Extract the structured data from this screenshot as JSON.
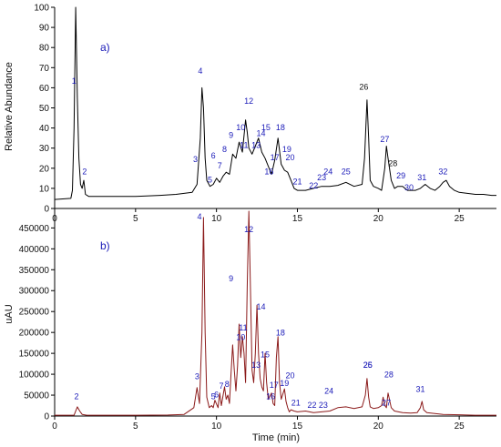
{
  "chart_data": [
    {
      "type": "line",
      "panel_label": "a)",
      "ylabel": "Relative Abundance",
      "xlabel": "",
      "xlim": [
        0,
        27.3
      ],
      "ylim": [
        0,
        100
      ],
      "xticks": [
        0,
        5,
        10,
        15,
        20,
        25
      ],
      "yticks": [
        0,
        10,
        20,
        30,
        40,
        50,
        60,
        70,
        80,
        90,
        100
      ],
      "line_color": "#000000",
      "series": [
        {
          "values_x": [
            0.0,
            1.0,
            1.1,
            1.2,
            1.3,
            1.4,
            1.5,
            1.6,
            1.7,
            1.8,
            1.9,
            2.1,
            2.5,
            3.5,
            5.0,
            6.5,
            7.5,
            8.5,
            8.8,
            9.0,
            9.1,
            9.2,
            9.3,
            9.4,
            9.6,
            9.8,
            10.0,
            10.2,
            10.4,
            10.6,
            10.8,
            11.0,
            11.2,
            11.4,
            11.6,
            11.8,
            11.9,
            12.0,
            12.2,
            12.4,
            12.6,
            12.8,
            13.0,
            13.2,
            13.4,
            13.6,
            13.8,
            14.0,
            14.2,
            14.4,
            14.6,
            14.8,
            15.0,
            15.5,
            16.0,
            16.5,
            17.0,
            17.5,
            18.0,
            18.5,
            19.0,
            19.15,
            19.3,
            19.4,
            19.5,
            19.7,
            20.0,
            20.2,
            20.4,
            20.5,
            20.6,
            20.8,
            21.0,
            21.2,
            21.5,
            21.8,
            22.0,
            22.3,
            22.6,
            22.9,
            23.2,
            23.5,
            23.8,
            24.0,
            24.2,
            24.4,
            24.7,
            25.0,
            25.5,
            26.0,
            26.5,
            27.0,
            27.3
          ],
          "values_y": [
            4.5,
            5,
            9,
            40,
            100,
            55,
            25,
            12,
            10,
            14,
            7,
            6,
            6,
            6,
            6,
            6.5,
            7,
            8,
            12,
            35,
            60,
            50,
            25,
            14,
            11,
            12,
            15,
            13,
            16,
            18,
            17,
            27,
            25,
            33,
            28,
            44,
            38,
            30,
            27,
            31,
            35,
            28,
            25,
            21,
            17,
            24,
            35,
            22,
            19,
            18,
            14,
            10,
            9,
            9,
            10,
            11,
            11,
            11.5,
            13,
            11,
            12,
            25,
            54,
            35,
            14,
            11,
            10,
            9,
            20,
            31,
            25,
            14,
            10,
            11,
            11,
            9,
            9,
            9,
            10,
            12,
            10,
            9,
            11,
            13,
            14,
            11,
            9,
            8,
            7.5,
            7,
            7,
            6.5,
            6.5
          ]
        }
      ],
      "peak_labels": [
        {
          "text": "1",
          "x": 1.2,
          "y": 62,
          "color": "#1a1ab8"
        },
        {
          "text": "2",
          "x": 1.85,
          "y": 17,
          "color": "#1a1ab8"
        },
        {
          "text": "3",
          "x": 8.7,
          "y": 23,
          "color": "#1a1ab8"
        },
        {
          "text": "4",
          "x": 9.0,
          "y": 67,
          "color": "#1a1ab8"
        },
        {
          "text": "5",
          "x": 9.6,
          "y": 13,
          "color": "#1a1ab8"
        },
        {
          "text": "6",
          "x": 9.8,
          "y": 25,
          "color": "#1a1ab8"
        },
        {
          "text": "7",
          "x": 10.2,
          "y": 20,
          "color": "#1a1ab8"
        },
        {
          "text": "8",
          "x": 10.5,
          "y": 28,
          "color": "#1a1ab8"
        },
        {
          "text": "9",
          "x": 10.9,
          "y": 35,
          "color": "#1a1ab8"
        },
        {
          "text": "10",
          "x": 11.5,
          "y": 39,
          "color": "#1a1ab8"
        },
        {
          "text": "11",
          "x": 11.7,
          "y": 30,
          "color": "#1a1ab8"
        },
        {
          "text": "12",
          "x": 12.0,
          "y": 52,
          "color": "#1a1ab8"
        },
        {
          "text": "13",
          "x": 12.45,
          "y": 30,
          "color": "#1a1ab8"
        },
        {
          "text": "14",
          "x": 12.75,
          "y": 36,
          "color": "#1a1ab8"
        },
        {
          "text": "15",
          "x": 13.05,
          "y": 39,
          "color": "#1a1ab8"
        },
        {
          "text": "16",
          "x": 13.25,
          "y": 17,
          "color": "#1a1ab8"
        },
        {
          "text": "17",
          "x": 13.6,
          "y": 24,
          "color": "#1a1ab8"
        },
        {
          "text": "18",
          "x": 13.95,
          "y": 39,
          "color": "#1a1ab8"
        },
        {
          "text": "19",
          "x": 14.35,
          "y": 28,
          "color": "#1a1ab8"
        },
        {
          "text": "20",
          "x": 14.55,
          "y": 24,
          "color": "#1a1ab8"
        },
        {
          "text": "21",
          "x": 15.0,
          "y": 12,
          "color": "#1a1ab8"
        },
        {
          "text": "22",
          "x": 16.0,
          "y": 10,
          "color": "#1a1ab8"
        },
        {
          "text": "23",
          "x": 16.5,
          "y": 14,
          "color": "#1a1ab8"
        },
        {
          "text": "24",
          "x": 16.9,
          "y": 17,
          "color": "#1a1ab8"
        },
        {
          "text": "25",
          "x": 18.0,
          "y": 17,
          "color": "#1a1ab8"
        },
        {
          "text": "26",
          "x": 19.1,
          "y": 59,
          "color": "#111111"
        },
        {
          "text": "27",
          "x": 20.4,
          "y": 33,
          "color": "#1a1ab8"
        },
        {
          "text": "28",
          "x": 20.9,
          "y": 21,
          "color": "#111111"
        },
        {
          "text": "29",
          "x": 21.4,
          "y": 15,
          "color": "#1a1ab8"
        },
        {
          "text": "30",
          "x": 21.9,
          "y": 9,
          "color": "#1a1ab8"
        },
        {
          "text": "31",
          "x": 22.7,
          "y": 14,
          "color": "#1a1ab8"
        },
        {
          "text": "32",
          "x": 24.0,
          "y": 17,
          "color": "#1a1ab8"
        }
      ]
    },
    {
      "type": "line",
      "panel_label": "b)",
      "ylabel": "uAU",
      "xlabel": "Time (min)",
      "xlim": [
        0,
        27.3
      ],
      "ylim": [
        0,
        490000
      ],
      "xticks": [
        0,
        5,
        10,
        15,
        20,
        25
      ],
      "yticks": [
        0,
        50000,
        100000,
        150000,
        200000,
        250000,
        300000,
        350000,
        400000,
        450000
      ],
      "line_color": "#8b1a1a",
      "series": [
        {
          "values_x": [
            0.0,
            1.2,
            1.4,
            1.55,
            1.7,
            2.0,
            3.0,
            5.0,
            7.0,
            8.0,
            8.6,
            8.8,
            8.95,
            9.1,
            9.2,
            9.3,
            9.4,
            9.55,
            9.7,
            9.8,
            9.9,
            10.1,
            10.2,
            10.3,
            10.5,
            10.6,
            10.7,
            10.8,
            10.9,
            11.0,
            11.1,
            11.2,
            11.3,
            11.4,
            11.5,
            11.6,
            11.7,
            11.8,
            11.9,
            12.0,
            12.1,
            12.2,
            12.3,
            12.4,
            12.5,
            12.6,
            12.7,
            12.8,
            12.9,
            13.0,
            13.1,
            13.2,
            13.4,
            13.5,
            13.6,
            13.7,
            13.8,
            13.9,
            14.0,
            14.2,
            14.3,
            14.4,
            14.5,
            14.6,
            14.8,
            15.0,
            15.5,
            16.0,
            16.5,
            17.0,
            17.5,
            18.0,
            18.5,
            19.0,
            19.2,
            19.3,
            19.4,
            19.5,
            19.7,
            20.0,
            20.2,
            20.3,
            20.4,
            20.5,
            20.6,
            20.8,
            21.0,
            21.5,
            22.0,
            22.4,
            22.6,
            22.7,
            22.8,
            23.0,
            23.5,
            24.0,
            25.0,
            26.0,
            27.0,
            27.3
          ],
          "values_y": [
            2000,
            2000,
            22000,
            12000,
            4000,
            2000,
            2000,
            2000,
            2500,
            4000,
            20000,
            68000,
            30000,
            200000,
            475000,
            200000,
            45000,
            20000,
            25000,
            20000,
            38000,
            20000,
            55000,
            25000,
            70000,
            40000,
            50000,
            30000,
            100000,
            170000,
            110000,
            60000,
            120000,
            220000,
            140000,
            190000,
            150000,
            80000,
            310000,
            490000,
            300000,
            110000,
            80000,
            150000,
            265000,
            150000,
            90000,
            70000,
            60000,
            150000,
            80000,
            40000,
            55000,
            30000,
            25000,
            140000,
            190000,
            80000,
            40000,
            65000,
            35000,
            20000,
            10000,
            15000,
            12000,
            10000,
            12000,
            8000,
            10000,
            12000,
            20000,
            22000,
            18000,
            22000,
            50000,
            90000,
            45000,
            22000,
            18000,
            20000,
            25000,
            45000,
            25000,
            20000,
            55000,
            20000,
            12000,
            8000,
            7000,
            8000,
            20000,
            35000,
            15000,
            8000,
            6000,
            4000,
            3000,
            2000,
            2000,
            2000
          ]
        }
      ],
      "peak_labels": [
        {
          "text": "2",
          "x": 1.35,
          "y": 40000,
          "color": "#1a1ab8"
        },
        {
          "text": "3",
          "x": 8.8,
          "y": 88000,
          "color": "#1a1ab8"
        },
        {
          "text": "4",
          "x": 8.95,
          "y": 470000,
          "color": "#1a1ab8"
        },
        {
          "text": "5",
          "x": 9.8,
          "y": 40000,
          "color": "#1a1ab8"
        },
        {
          "text": "6",
          "x": 10.0,
          "y": 45000,
          "color": "#1a1ab8"
        },
        {
          "text": "7",
          "x": 10.3,
          "y": 65000,
          "color": "#1a1ab8"
        },
        {
          "text": "8",
          "x": 10.65,
          "y": 70000,
          "color": "#1a1ab8"
        },
        {
          "text": "9",
          "x": 10.9,
          "y": 322000,
          "color": "#1a1ab8"
        },
        {
          "text": "10",
          "x": 11.5,
          "y": 182000,
          "color": "#1a1ab8"
        },
        {
          "text": "11",
          "x": 11.65,
          "y": 205000,
          "color": "#1a1ab8"
        },
        {
          "text": "12",
          "x": 12.0,
          "y": 440000,
          "color": "#1a1ab8"
        },
        {
          "text": "13",
          "x": 12.45,
          "y": 115000,
          "color": "#1a1ab8"
        },
        {
          "text": "14",
          "x": 12.75,
          "y": 255000,
          "color": "#1a1ab8"
        },
        {
          "text": "15",
          "x": 13.0,
          "y": 140000,
          "color": "#1a1ab8"
        },
        {
          "text": "16",
          "x": 13.35,
          "y": 40000,
          "color": "#1a1ab8"
        },
        {
          "text": "17",
          "x": 13.55,
          "y": 68000,
          "color": "#1a1ab8"
        },
        {
          "text": "18",
          "x": 13.95,
          "y": 193000,
          "color": "#1a1ab8"
        },
        {
          "text": "19",
          "x": 14.2,
          "y": 72000,
          "color": "#1a1ab8"
        },
        {
          "text": "20",
          "x": 14.55,
          "y": 90000,
          "color": "#1a1ab8"
        },
        {
          "text": "21",
          "x": 14.9,
          "y": 25000,
          "color": "#1a1ab8"
        },
        {
          "text": "22",
          "x": 15.9,
          "y": 20000,
          "color": "#1a1ab8"
        },
        {
          "text": "23",
          "x": 16.6,
          "y": 20000,
          "color": "#1a1ab8"
        },
        {
          "text": "24",
          "x": 16.95,
          "y": 53000,
          "color": "#1a1ab8"
        },
        {
          "text": "25",
          "x": 19.35,
          "y": 115000,
          "color": "#1a1ab8"
        },
        {
          "text": "26",
          "x": 19.35,
          "y": 115000,
          "color": "#1a1ab8"
        },
        {
          "text": "27",
          "x": 20.5,
          "y": 25000,
          "color": "#1a1ab8"
        },
        {
          "text": "28",
          "x": 20.65,
          "y": 93000,
          "color": "#1a1ab8"
        },
        {
          "text": "31",
          "x": 22.6,
          "y": 58000,
          "color": "#1a1ab8"
        }
      ]
    }
  ]
}
